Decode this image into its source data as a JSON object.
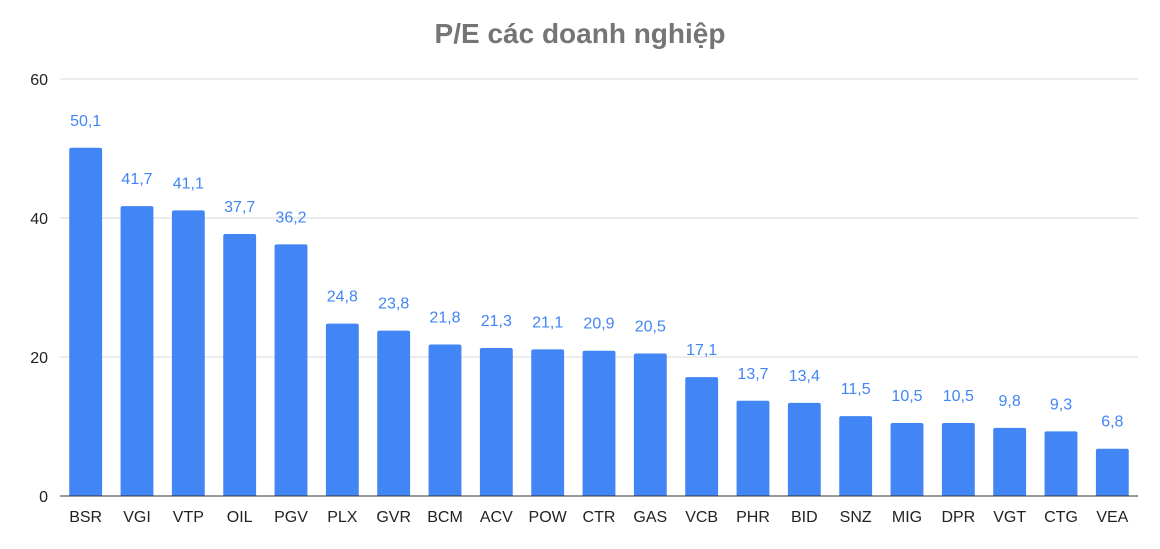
{
  "chart_data": {
    "type": "bar",
    "title": "P/E các doanh nghiệp",
    "xlabel": "",
    "ylabel": "",
    "categories": [
      "BSR",
      "VGI",
      "VTP",
      "OIL",
      "PGV",
      "PLX",
      "GVR",
      "BCM",
      "ACV",
      "POW",
      "CTR",
      "GAS",
      "VCB",
      "PHR",
      "BID",
      "SNZ",
      "MIG",
      "DPR",
      "VGT",
      "CTG",
      "VEA"
    ],
    "values": [
      50.1,
      41.7,
      41.1,
      37.7,
      36.2,
      24.8,
      23.8,
      21.8,
      21.3,
      21.1,
      20.9,
      20.5,
      17.1,
      13.7,
      13.4,
      11.5,
      10.5,
      10.5,
      9.8,
      9.3,
      6.8
    ],
    "data_labels": [
      "50,1",
      "41,7",
      "41,1",
      "37,7",
      "36,2",
      "24,8",
      "23,8",
      "21,8",
      "21,3",
      "21,1",
      "20,9",
      "20,5",
      "17,1",
      "13,7",
      "13,4",
      "11,5",
      "10,5",
      "10,5",
      "9,8",
      "9,3",
      "6,8"
    ],
    "yticks": [
      0,
      20,
      40,
      60
    ],
    "ylim": [
      0,
      60
    ],
    "grid": true,
    "legend": "none",
    "colors": {
      "bar": "#4285f4",
      "data_label": "#4285f4",
      "grid": "#d9d9d9",
      "axis": "#333333",
      "title": "#757575"
    }
  }
}
